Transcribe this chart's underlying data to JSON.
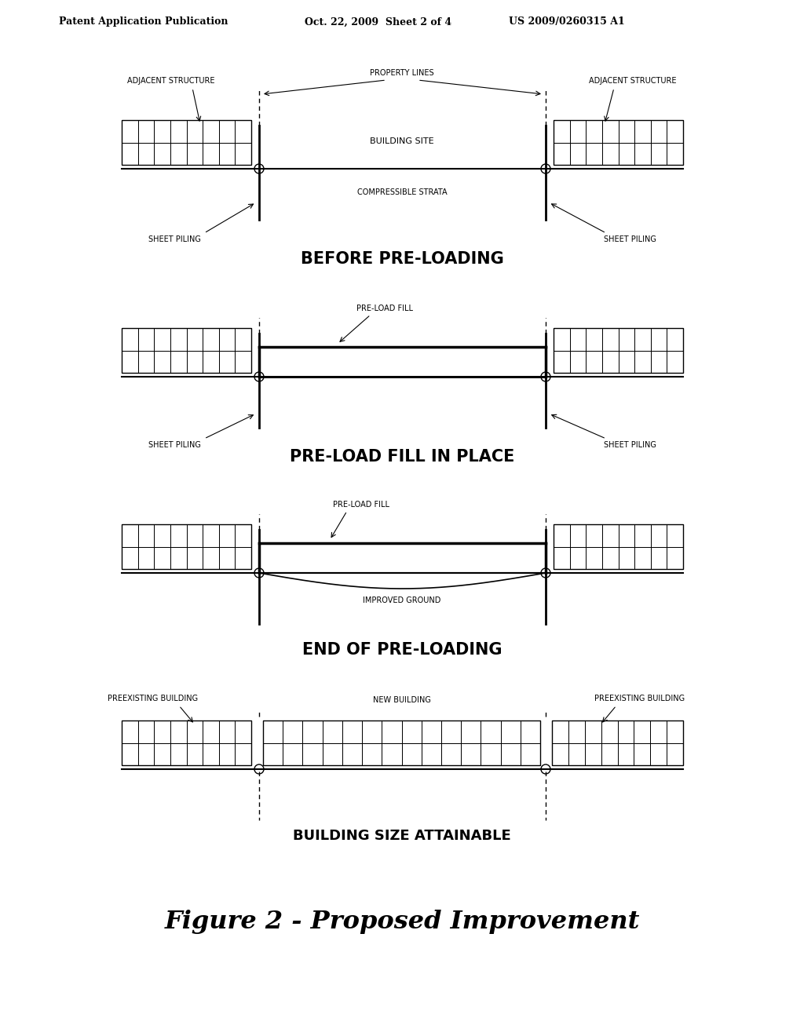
{
  "bg_color": "#ffffff",
  "header_left": "Patent Application Publication",
  "header_mid": "Oct. 22, 2009  Sheet 2 of 4",
  "header_right": "US 2009/0260315 A1",
  "footer_title": "Figure 2 - Proposed Improvement",
  "panel1_title": "BEFORE PRE-LOADING",
  "panel2_title": "PRE-LOAD FILL IN PLACE",
  "panel3_title": "END OF PRE-LOADING",
  "panel4_title": "BUILDING SIZE ATTAINABLE",
  "lw_ground": 1.5,
  "lw_pile": 2.0,
  "lw_fill": 2.0,
  "building_rows": 2,
  "building_cols_side": 8,
  "building_cols_new": 14
}
